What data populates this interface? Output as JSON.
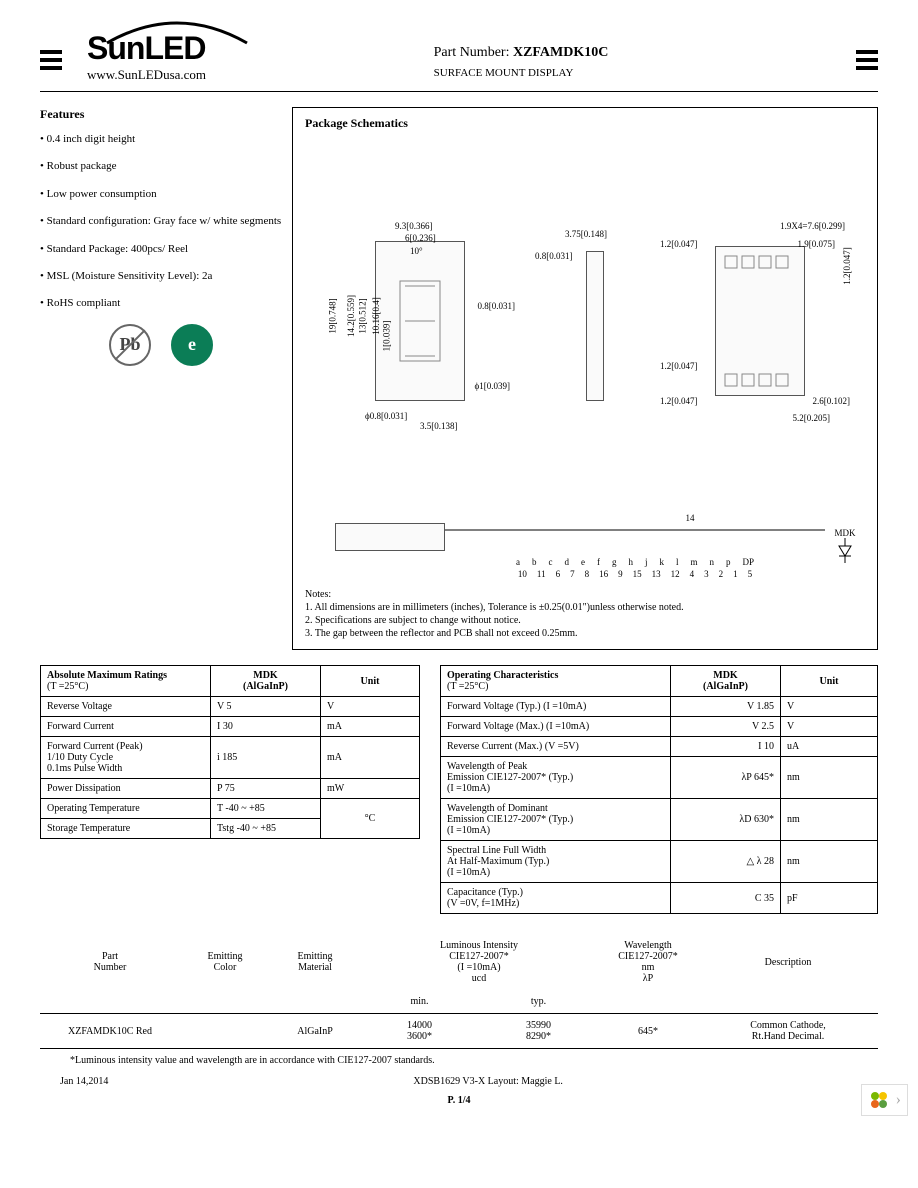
{
  "header": {
    "logo_main": "SunLED",
    "logo_url": "www.SunLEDusa.com",
    "part_label": "Part Number:",
    "part_number": "XZFAMDK10C",
    "subtitle": "SURFACE MOUNT DISPLAY"
  },
  "features": {
    "title": "Features",
    "items": [
      "0.4 inch digit height",
      "Robust package",
      "Low power consumption",
      "Standard configuration: Gray face w/ white segments",
      "Standard Package: 400pcs/ Reel",
      "MSL (Moisture Sensitivity Level): 2a",
      "RoHS compliant"
    ],
    "icon_pb": "Pb",
    "icon_e": "e"
  },
  "schematics": {
    "title": "Package Schematics",
    "dims": {
      "w1": "9.3[0.366]",
      "w2": "6[0.236]",
      "h1": "19[0.748]",
      "h2": "14.2[0.559]",
      "h3": "13[0.512]",
      "h4": "10.16[0.4]",
      "h5": "1[0.039]",
      "d1": "ϕ0.8[0.031]",
      "d2": "ϕ1[0.039]",
      "p1": "3.5[0.138]",
      "a1": "10°",
      "s1": "0.8[0.031]",
      "s2": "3.75[0.148]",
      "s3": "0.8[0.031]",
      "r1": "1.9X4=7.6[0.299]",
      "r2": "1.2[0.047]",
      "r3": "1.9[0.075]",
      "r4": "1.2[0.047]",
      "r5": "1.2[0.047]",
      "r6": "2.6[0.102]",
      "r7": "5.2[0.205]",
      "r8": "1.2[0.047]"
    },
    "circuit": {
      "common_pin": "14",
      "letters": [
        "a",
        "b",
        "c",
        "d",
        "e",
        "f",
        "g",
        "h",
        "j",
        "k",
        "l",
        "m",
        "n",
        "p",
        "DP"
      ],
      "numbers": [
        "10",
        "11",
        "6",
        "7",
        "8",
        "16",
        "9",
        "15",
        "13",
        "12",
        "4",
        "3",
        "2",
        "1",
        "5"
      ],
      "label_mdk": "MDK"
    },
    "notes_title": "Notes:",
    "notes": [
      "1. All dimensions are in millimeters (inches), Tolerance is ±0.25(0.01\")unless otherwise noted.",
      "2. Specifications are subject to change without notice.",
      "3. The gap between the reflector and PCB shall not exceed 0.25mm."
    ]
  },
  "abs_max": {
    "title": "Absolute Maximum Ratings",
    "cond": "(T   =25°C)",
    "col_mdk": "MDK",
    "col_mat": "(AlGaInP)",
    "col_unit": "Unit",
    "rows": [
      {
        "param": "Reverse Voltage",
        "sym": "V",
        "val": "5",
        "unit": "V"
      },
      {
        "param": "Forward Current",
        "sym": "I",
        "val": "30",
        "unit": "mA"
      },
      {
        "param": "Forward Current (Peak)\n1/10 Duty Cycle\n0.1ms Pulse Width",
        "sym": "i",
        "val": "185",
        "unit": "mA"
      },
      {
        "param": "Power Dissipation",
        "sym": "P",
        "val": "75",
        "unit": "mW"
      },
      {
        "param": "Operating Temperature",
        "sym": "T",
        "val": "-40 ~ +85",
        "unit": "°C"
      },
      {
        "param": "Storage Temperature",
        "sym": "Tstg",
        "val": "-40 ~ +85",
        "unit": ""
      }
    ]
  },
  "op_char": {
    "title": "Operating Characteristics",
    "cond": "(T   =25°C)",
    "col_mdk": "MDK",
    "col_mat": "(AlGaInP)",
    "col_unit": "Unit",
    "rows": [
      {
        "param": "Forward Voltage (Typ.) (I       =10mA)",
        "sym": "V",
        "val": "1.85",
        "unit": "V"
      },
      {
        "param": "Forward Voltage (Max.) (I       =10mA)",
        "sym": "V",
        "val": "2.5",
        "unit": "V"
      },
      {
        "param": "Reverse Current (Max.) (V      =5V)",
        "sym": "I",
        "val": "10",
        "unit": "uA"
      },
      {
        "param": "Wavelength of Peak\nEmission CIE127-2007*      (Typ.)\n(I    =10mA)",
        "sym": "λP",
        "val": "645*",
        "unit": "nm"
      },
      {
        "param": "Wavelength of Dominant\nEmission CIE127-2007*      (Typ.)\n(I    =10mA)",
        "sym": "λD",
        "val": "630*",
        "unit": "nm"
      },
      {
        "param": "Spectral Line Full Width\nAt Half-Maximum (Typ.)\n(I    =10mA)",
        "sym": "△ λ",
        "val": "28",
        "unit": "nm"
      },
      {
        "param": "Capacitance (Typ.)\n(V    =0V, f=1MHz)",
        "sym": "C",
        "val": "35",
        "unit": "pF"
      }
    ]
  },
  "summary": {
    "headers": {
      "part": "Part\nNumber",
      "color": "Emitting\nColor",
      "material": "Emitting\nMaterial",
      "lum": "Luminous Intensity\nCIE127-2007*\n(I   =10mA)\nucd",
      "wave": "Wavelength\nCIE127-2007*\nnm\nλP",
      "desc": "Description",
      "min": "min.",
      "typ": "typ."
    },
    "row": {
      "part": "XZFAMDK10C",
      "color": "Red",
      "material": "AlGaInP",
      "min1": "14000",
      "min2": "3600*",
      "typ1": "35990",
      "typ2": "8290*",
      "wave": "645*",
      "desc": "Common Cathode,\nRt.Hand Decimal."
    }
  },
  "footnote": "*Luminous intensity value and wavelength are in accordance with CIE127-2007 standards.",
  "footer": {
    "date": "Jan 14,2014",
    "doc": "XDSB1629    V3-X   Layout: Maggie L.",
    "page": "P. 1/4"
  }
}
